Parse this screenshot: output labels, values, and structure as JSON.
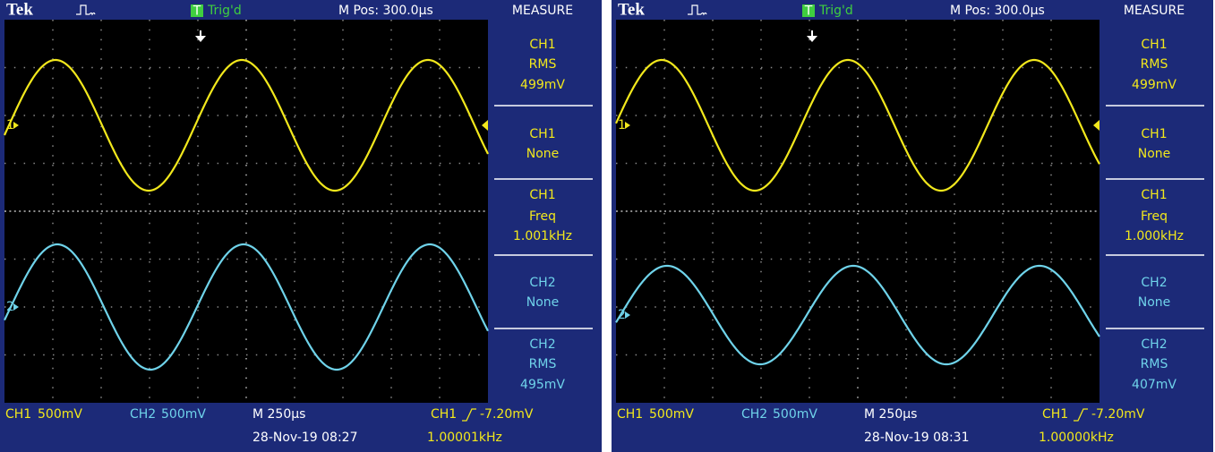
{
  "screens": [
    {
      "header": {
        "brand": "Tek",
        "trigger_badge": "T",
        "trigger_status": "Trig'd",
        "position": "M Pos: 300.0µs",
        "menu_title": "MEASURE"
      },
      "markers": {
        "ch1": "1",
        "ch2": "2"
      },
      "measurements": [
        {
          "source": "CH1",
          "label": "RMS",
          "value": "499mV"
        },
        {
          "source": "CH1",
          "label": "None"
        },
        {
          "source": "CH1",
          "label": "Freq",
          "value": "1.001kHz"
        },
        {
          "source": "CH2",
          "label": "None"
        },
        {
          "source": "CH2",
          "label": "RMS",
          "value": "495mV"
        }
      ],
      "footer": {
        "ch1": "CH1",
        "ch1_scale": "500mV",
        "ch2": "CH2",
        "ch2_scale": "500mV",
        "timebase": "M 250µs",
        "trigger_source": "CH1",
        "trigger_level": "-7.20mV",
        "datetime": "28-Nov-19 08:27",
        "frequency": "1.00001kHz"
      }
    },
    {
      "header": {
        "brand": "Tek",
        "trigger_badge": "T",
        "trigger_status": "Trig'd",
        "position": "M Pos: 300.0µs",
        "menu_title": "MEASURE"
      },
      "markers": {
        "ch1": "1",
        "ch2": "2"
      },
      "measurements": [
        {
          "source": "CH1",
          "label": "RMS",
          "value": "499mV"
        },
        {
          "source": "CH1",
          "label": "None"
        },
        {
          "source": "CH1",
          "label": "Freq",
          "value": "1.000kHz"
        },
        {
          "source": "CH2",
          "label": "None"
        },
        {
          "source": "CH2",
          "label": "RMS",
          "value": "407mV"
        }
      ],
      "footer": {
        "ch1": "CH1",
        "ch1_scale": "500mV",
        "ch2": "CH2",
        "ch2_scale": "500mV",
        "timebase": "M 250µs",
        "trigger_source": "CH1",
        "trigger_level": "-7.20mV",
        "datetime": "28-Nov-19 08:31",
        "frequency": "1.00000kHz"
      }
    }
  ]
}
